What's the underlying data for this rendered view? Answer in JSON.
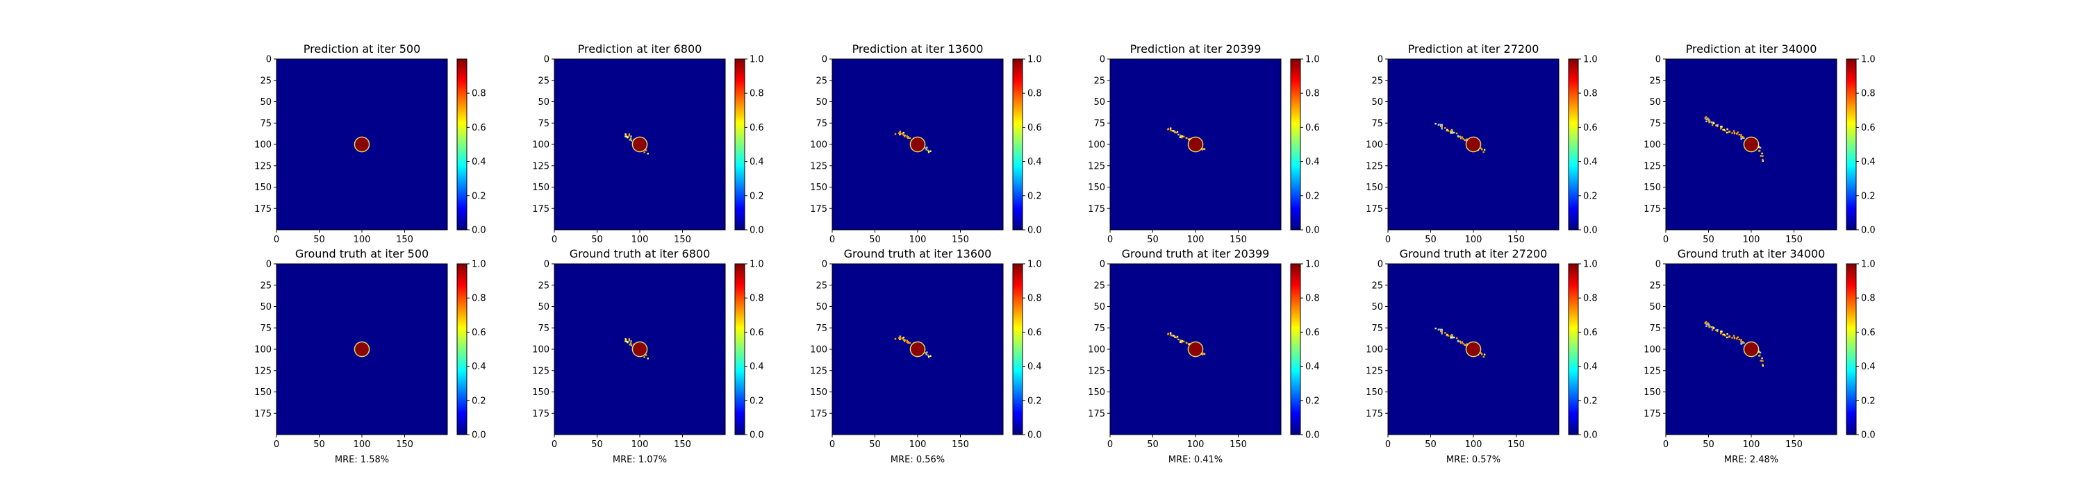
{
  "colors": {
    "background": "#00008b",
    "seed": "#8b0000",
    "speckle": "#ffa500",
    "speckle_highlight": "#ffff66",
    "speckle_cool": "#7fd8ff",
    "frame": "#000000",
    "colormap": [
      "#00007f",
      "#0000ff",
      "#007fff",
      "#00ffff",
      "#7fff7f",
      "#ffff00",
      "#ff7f00",
      "#ff0000",
      "#7f0000"
    ]
  },
  "image_axes": {
    "x_range": [
      0,
      200
    ],
    "y_range": [
      0,
      200
    ],
    "y_inverted": true,
    "x_ticks": [
      "0",
      "50",
      "100",
      "150"
    ],
    "y_ticks": [
      "0",
      "25",
      "50",
      "75",
      "100",
      "125",
      "150",
      "175"
    ],
    "seed_center": [
      100,
      100
    ],
    "seed_radius": 8
  },
  "chart_data": [
    {
      "type": "heatmap",
      "colormap": "jet",
      "row": "prediction",
      "title": "Prediction at iter 500",
      "iter": 500,
      "colorbar": {
        "range": [
          0,
          1
        ],
        "ticks": [
          "0.0",
          "0.2",
          "0.4",
          "0.6",
          "0.8"
        ]
      },
      "growth_path": [],
      "mre_label": ""
    },
    {
      "type": "heatmap",
      "colormap": "jet",
      "row": "prediction",
      "title": "Prediction at iter 6800",
      "iter": 6800,
      "colorbar": {
        "range": [
          0,
          1
        ],
        "ticks": [
          "0.0",
          "0.2",
          "0.4",
          "0.6",
          "0.8",
          "1.0"
        ]
      },
      "growth_path": [
        [
          108,
          110
        ],
        [
          100,
          102
        ],
        [
          92,
          96
        ],
        [
          87,
          91
        ],
        [
          84,
          88
        ]
      ],
      "mre_label": ""
    },
    {
      "type": "heatmap",
      "colormap": "jet",
      "row": "prediction",
      "title": "Prediction at iter 13600",
      "iter": 13600,
      "colorbar": {
        "range": [
          0,
          1
        ],
        "ticks": [
          "0.0",
          "0.2",
          "0.4",
          "0.6",
          "0.8",
          "1.0"
        ]
      },
      "growth_path": [
        [
          115,
          108
        ],
        [
          106,
          102
        ],
        [
          96,
          96
        ],
        [
          88,
          92
        ],
        [
          82,
          88
        ],
        [
          76,
          86
        ]
      ],
      "mre_label": ""
    },
    {
      "type": "heatmap",
      "colormap": "jet",
      "row": "prediction",
      "title": "Prediction at iter 20399",
      "iter": 20399,
      "colorbar": {
        "range": [
          0,
          1
        ],
        "ticks": [
          "0.0",
          "0.2",
          "0.4",
          "0.6",
          "0.8",
          "1.0"
        ]
      },
      "growth_path": [
        [
          112,
          107
        ],
        [
          104,
          102
        ],
        [
          94,
          96
        ],
        [
          84,
          90
        ],
        [
          75,
          85
        ],
        [
          68,
          82
        ]
      ],
      "mre_label": ""
    },
    {
      "type": "heatmap",
      "colormap": "jet",
      "row": "prediction",
      "title": "Prediction at iter 27200",
      "iter": 27200,
      "colorbar": {
        "range": [
          0,
          1
        ],
        "ticks": [
          "0.0",
          "0.2",
          "0.4",
          "0.6",
          "0.8",
          "1.0"
        ]
      },
      "growth_path": [
        [
          112,
          108
        ],
        [
          104,
          102
        ],
        [
          94,
          96
        ],
        [
          84,
          90
        ],
        [
          74,
          85
        ],
        [
          65,
          80
        ],
        [
          57,
          77
        ]
      ],
      "mre_label": ""
    },
    {
      "type": "heatmap",
      "colormap": "jet",
      "row": "prediction",
      "title": "Prediction at iter 34000",
      "iter": 34000,
      "colorbar": {
        "range": [
          0,
          1
        ],
        "ticks": [
          "0.0",
          "0.2",
          "0.4",
          "0.6",
          "0.8",
          "1.0"
        ]
      },
      "growth_path": [
        [
          114,
          118
        ],
        [
          110,
          106
        ],
        [
          100,
          98
        ],
        [
          90,
          92
        ],
        [
          82,
          86
        ],
        [
          72,
          84
        ],
        [
          64,
          80
        ],
        [
          56,
          76
        ],
        [
          50,
          72
        ],
        [
          46,
          68
        ]
      ],
      "mre_label": ""
    },
    {
      "type": "heatmap",
      "colormap": "jet",
      "row": "ground_truth",
      "title": "Ground truth at iter 500",
      "iter": 500,
      "colorbar": {
        "range": [
          0,
          1
        ],
        "ticks": [
          "0.0",
          "0.2",
          "0.4",
          "0.6",
          "0.8",
          "1.0"
        ]
      },
      "growth_path": [],
      "mre_label": "MRE: 1.58%"
    },
    {
      "type": "heatmap",
      "colormap": "jet",
      "row": "ground_truth",
      "title": "Ground truth at iter 6800",
      "iter": 6800,
      "colorbar": {
        "range": [
          0,
          1
        ],
        "ticks": [
          "0.0",
          "0.2",
          "0.4",
          "0.6",
          "0.8",
          "1.0"
        ]
      },
      "growth_path": [
        [
          108,
          110
        ],
        [
          100,
          102
        ],
        [
          92,
          96
        ],
        [
          87,
          91
        ],
        [
          84,
          88
        ]
      ],
      "mre_label": "MRE: 1.07%"
    },
    {
      "type": "heatmap",
      "colormap": "jet",
      "row": "ground_truth",
      "title": "Ground truth at iter 13600",
      "iter": 13600,
      "colorbar": {
        "range": [
          0,
          1
        ],
        "ticks": [
          "0.0",
          "0.2",
          "0.4",
          "0.6",
          "0.8",
          "1.0"
        ]
      },
      "growth_path": [
        [
          115,
          108
        ],
        [
          106,
          102
        ],
        [
          96,
          96
        ],
        [
          88,
          92
        ],
        [
          82,
          88
        ],
        [
          76,
          86
        ]
      ],
      "mre_label": "MRE: 0.56%"
    },
    {
      "type": "heatmap",
      "colormap": "jet",
      "row": "ground_truth",
      "title": "Ground truth at iter 20399",
      "iter": 20399,
      "colorbar": {
        "range": [
          0,
          1
        ],
        "ticks": [
          "0.0",
          "0.2",
          "0.4",
          "0.6",
          "0.8",
          "1.0"
        ]
      },
      "growth_path": [
        [
          112,
          107
        ],
        [
          104,
          102
        ],
        [
          94,
          96
        ],
        [
          84,
          90
        ],
        [
          75,
          85
        ],
        [
          68,
          82
        ]
      ],
      "mre_label": "MRE: 0.41%"
    },
    {
      "type": "heatmap",
      "colormap": "jet",
      "row": "ground_truth",
      "title": "Ground truth at iter 27200",
      "iter": 27200,
      "colorbar": {
        "range": [
          0,
          1
        ],
        "ticks": [
          "0.0",
          "0.2",
          "0.4",
          "0.6",
          "0.8",
          "1.0"
        ]
      },
      "growth_path": [
        [
          112,
          108
        ],
        [
          104,
          102
        ],
        [
          94,
          96
        ],
        [
          84,
          90
        ],
        [
          74,
          85
        ],
        [
          65,
          80
        ],
        [
          57,
          77
        ]
      ],
      "mre_label": "MRE: 0.57%"
    },
    {
      "type": "heatmap",
      "colormap": "jet",
      "row": "ground_truth",
      "title": "Ground truth at iter 34000",
      "iter": 34000,
      "colorbar": {
        "range": [
          0,
          1
        ],
        "ticks": [
          "0.0",
          "0.2",
          "0.4",
          "0.6",
          "0.8",
          "1.0"
        ]
      },
      "growth_path": [
        [
          114,
          118
        ],
        [
          110,
          106
        ],
        [
          100,
          98
        ],
        [
          90,
          92
        ],
        [
          82,
          86
        ],
        [
          72,
          84
        ],
        [
          64,
          80
        ],
        [
          56,
          76
        ],
        [
          50,
          72
        ],
        [
          46,
          68
        ]
      ],
      "mre_label": "MRE: 2.48%"
    }
  ]
}
